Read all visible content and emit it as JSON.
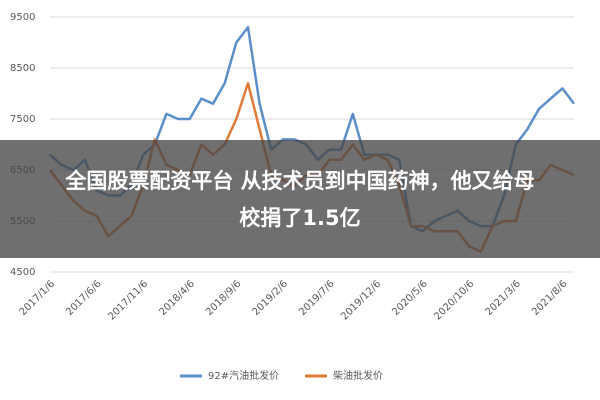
{
  "chart_data": {
    "type": "line",
    "categories": [
      "2017/1/6",
      null,
      null,
      null,
      "2017/6/6",
      null,
      null,
      null,
      "2017/11/6",
      null,
      null,
      null,
      "2018/4/6",
      null,
      null,
      null,
      "2018/9/6",
      null,
      null,
      null,
      "2019/2/6",
      null,
      null,
      null,
      "2019/7/6",
      null,
      null,
      null,
      "2019/12/6",
      null,
      null,
      null,
      "2020/5/6",
      null,
      null,
      null,
      "2020/10/6",
      null,
      null,
      null,
      "2021/3/6",
      null,
      null,
      null,
      "2021/8/6",
      null
    ],
    "series": [
      {
        "name": "92#汽油批发价",
        "color": "#5b8fc9",
        "values": [
          6800,
          6600,
          6500,
          6700,
          6100,
          6000,
          6000,
          6200,
          6800,
          7000,
          7600,
          7500,
          7500,
          7900,
          7800,
          8200,
          9000,
          9300,
          7800,
          6900,
          7100,
          7100,
          7000,
          6700,
          6900,
          6900,
          7600,
          6800,
          6800,
          6800,
          6700,
          5400,
          5300,
          5500,
          5600,
          5700,
          5500,
          5400,
          5400,
          6000,
          7000,
          7300,
          7700,
          7900,
          8100,
          7800
        ]
      },
      {
        "name": "柴油批发价",
        "color": "#e07b39",
        "values": [
          6500,
          6200,
          5900,
          5700,
          5600,
          5200,
          5400,
          5600,
          6200,
          7100,
          6600,
          6500,
          6400,
          7000,
          6800,
          7000,
          7500,
          8200,
          7300,
          6400,
          6300,
          6200,
          6400,
          6400,
          6700,
          6700,
          7000,
          6700,
          6800,
          6700,
          6200,
          5400,
          5400,
          5300,
          5300,
          5300,
          5000,
          4900,
          5400,
          5500,
          5500,
          6300,
          6300,
          6600,
          6500,
          6400
        ]
      }
    ],
    "ylim": [
      4500,
      9500
    ],
    "yticks": [
      4500,
      5500,
      6500,
      7500,
      8500,
      9500
    ],
    "grid": true
  },
  "banner": {
    "lines": [
      "全国股票配资平台 从技术员到中国药神，他又给母",
      "校捐了1.5亿"
    ]
  }
}
